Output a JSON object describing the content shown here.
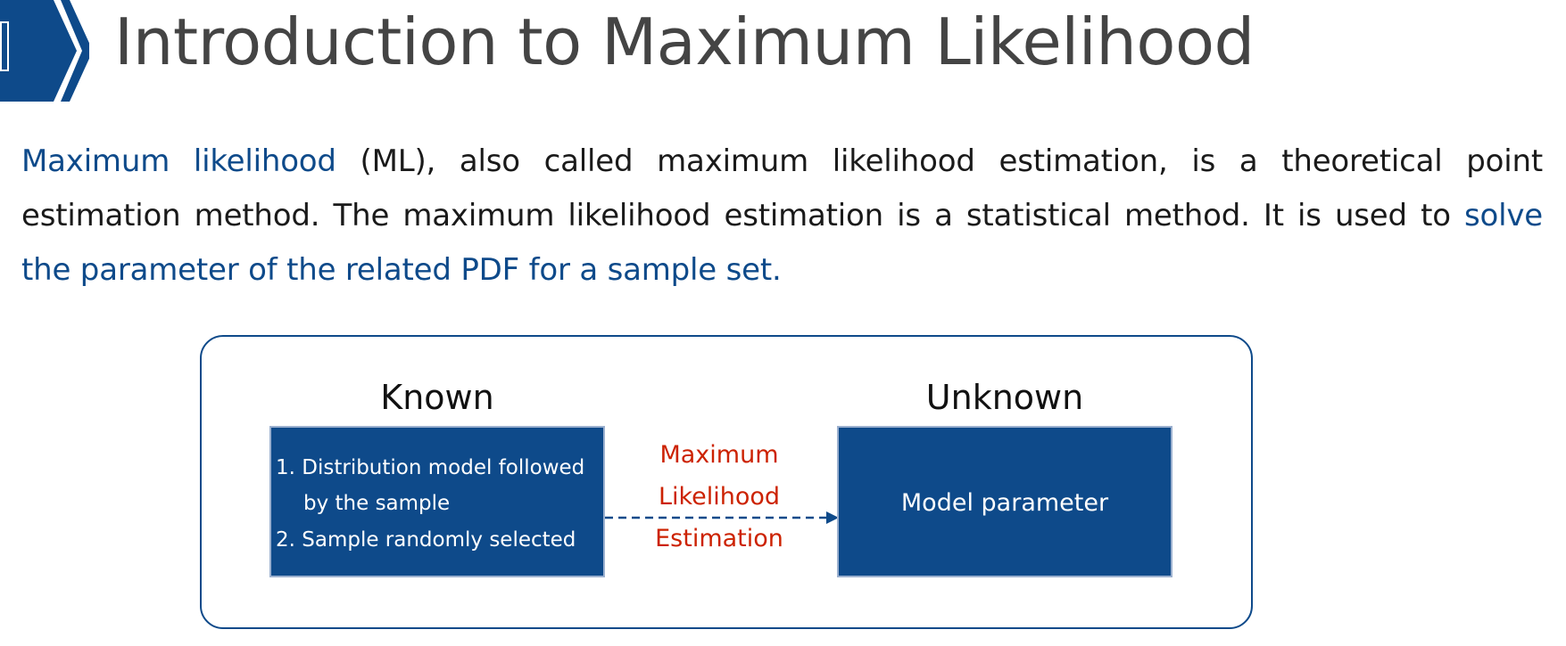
{
  "header": {
    "title": "Introduction to Maximum Likelihood"
  },
  "paragraph": {
    "part1_highlight": "Maximum likelihood",
    "part2": " (ML), also called maximum likelihood estimation, is a theoretical point estimation method. The maximum likelihood estimation is a statistical method. It is used to ",
    "part3_highlight": "solve the parameter of the related PDF for a sample set."
  },
  "diagram": {
    "known_heading": "Known",
    "unknown_heading": "Unknown",
    "known_items": [
      "1. Distribution model followed",
      "by the sample",
      "2. Sample randomly selected"
    ],
    "method_lines": [
      "Maximum",
      "Likelihood",
      "Estimation"
    ],
    "unknown_item": "Model parameter"
  },
  "colors": {
    "brand_blue": "#0e4a8a",
    "accent_red": "#cc2200",
    "title_gray": "#444444"
  }
}
